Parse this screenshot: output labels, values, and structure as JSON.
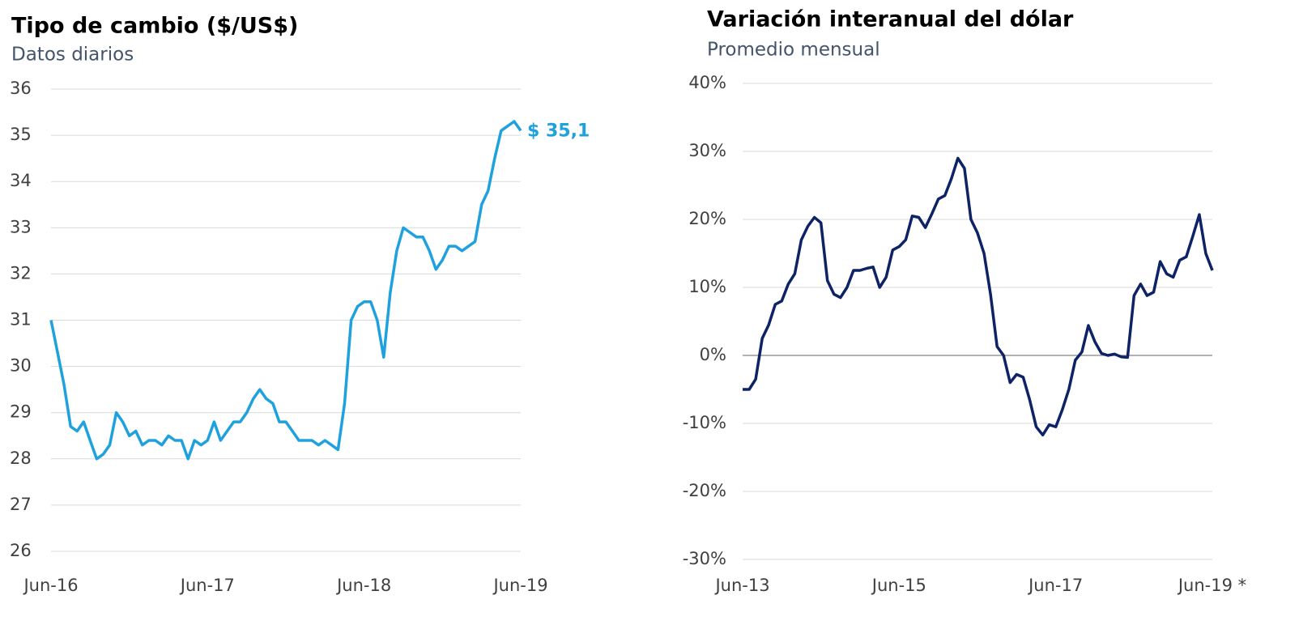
{
  "chart_data": [
    {
      "type": "line",
      "title": "Tipo de cambio ($/US$)",
      "subtitle": "Datos diarios",
      "color": "#1ea1dc",
      "grid": true,
      "categories": [
        "Jun-16",
        null,
        null,
        null,
        null,
        null,
        null,
        null,
        null,
        null,
        null,
        null,
        null,
        null,
        null,
        null,
        null,
        null,
        null,
        null,
        null,
        null,
        null,
        null,
        "Jun-17",
        null,
        null,
        null,
        null,
        null,
        null,
        null,
        null,
        null,
        null,
        null,
        null,
        null,
        null,
        null,
        null,
        null,
        null,
        null,
        null,
        null,
        null,
        null,
        "Jun-18",
        null,
        null,
        null,
        null,
        null,
        null,
        null,
        null,
        null,
        null,
        null,
        null,
        null,
        null,
        null,
        null,
        null,
        null,
        null,
        null,
        null,
        null,
        null,
        "Jun-19"
      ],
      "values": [
        31.0,
        30.3,
        29.6,
        28.7,
        28.6,
        28.8,
        28.4,
        28.0,
        28.1,
        28.3,
        29.0,
        28.8,
        28.5,
        28.6,
        28.3,
        28.4,
        28.4,
        28.3,
        28.5,
        28.4,
        28.4,
        28.0,
        28.4,
        28.3,
        28.4,
        28.8,
        28.4,
        28.6,
        28.8,
        28.8,
        29.0,
        29.3,
        29.5,
        29.3,
        29.2,
        28.8,
        28.8,
        28.6,
        28.4,
        28.4,
        28.4,
        28.3,
        28.4,
        28.3,
        28.2,
        29.2,
        31.0,
        31.3,
        31.4,
        31.4,
        31.0,
        30.2,
        31.6,
        32.5,
        33.0,
        32.9,
        32.8,
        32.8,
        32.5,
        32.1,
        32.3,
        32.6,
        32.6,
        32.5,
        32.6,
        32.7,
        33.5,
        33.8,
        34.5,
        35.1,
        35.2,
        35.3,
        35.1
      ],
      "value_labels": [
        null,
        null,
        null,
        null,
        null,
        null,
        null,
        null,
        null,
        null,
        null,
        null,
        null,
        null,
        null,
        null,
        null,
        null,
        null,
        null,
        null,
        null,
        null,
        null,
        null,
        null,
        null,
        null,
        null,
        null,
        null,
        null,
        null,
        null,
        null,
        null,
        null,
        null,
        null,
        null,
        null,
        null,
        null,
        null,
        null,
        null,
        null,
        null,
        null,
        null,
        null,
        null,
        null,
        null,
        null,
        null,
        null,
        null,
        null,
        null,
        null,
        null,
        null,
        null,
        null,
        null,
        null,
        null,
        null,
        null,
        null,
        null,
        "$ 35,1"
      ],
      "ylim": [
        26,
        36
      ],
      "yticks": [
        26,
        27,
        28,
        29,
        30,
        31,
        32,
        33,
        34,
        35,
        36
      ]
    },
    {
      "type": "line",
      "title": "Variación interanual del dólar",
      "subtitle": "Promedio mensual",
      "color": "#0d2366",
      "grid": true,
      "categories": [
        "Jun-13",
        null,
        null,
        null,
        null,
        null,
        null,
        null,
        null,
        null,
        null,
        null,
        null,
        null,
        null,
        null,
        null,
        null,
        null,
        null,
        null,
        null,
        null,
        null,
        "Jun-15",
        null,
        null,
        null,
        null,
        null,
        null,
        null,
        null,
        null,
        null,
        null,
        null,
        null,
        null,
        null,
        null,
        null,
        null,
        null,
        null,
        null,
        null,
        null,
        "Jun-17",
        null,
        null,
        null,
        null,
        null,
        null,
        null,
        null,
        null,
        null,
        null,
        null,
        null,
        null,
        null,
        null,
        null,
        null,
        null,
        null,
        null,
        null,
        null,
        "Jun-19 *"
      ],
      "values": [
        -5,
        -5,
        -3.5,
        2.5,
        4.5,
        7.5,
        8,
        10.5,
        12,
        17,
        19,
        20.3,
        19.5,
        11,
        9,
        8.5,
        10,
        12.5,
        12.5,
        12.8,
        13,
        10,
        11.5,
        15.5,
        16,
        17,
        20.5,
        20.3,
        18.8,
        20.8,
        23,
        23.5,
        26,
        29,
        27.5,
        20,
        18,
        15,
        9,
        1.3,
        0,
        -4,
        -2.8,
        -3.2,
        -6.5,
        -10.5,
        -11.7,
        -10.2,
        -10.5,
        -8,
        -5,
        -0.7,
        0.5,
        4.4,
        2,
        0.3,
        0,
        0.2,
        -0.2,
        -0.3,
        8.8,
        10.5,
        8.8,
        9.3,
        13.8,
        12,
        11.5,
        14,
        14.5,
        17.5,
        20.7,
        15,
        12.5
      ],
      "ylim": [
        -30,
        40
      ],
      "yticks": [
        {
          "value": -30,
          "label": "-30%"
        },
        {
          "value": -20,
          "label": "-20%"
        },
        {
          "value": -10,
          "label": "-10%"
        },
        {
          "value": 0,
          "label": "0%"
        },
        {
          "value": 10,
          "label": "10%"
        },
        {
          "value": 20,
          "label": "20%"
        },
        {
          "value": 30,
          "label": "30%"
        },
        {
          "value": 40,
          "label": "40%"
        }
      ]
    }
  ]
}
